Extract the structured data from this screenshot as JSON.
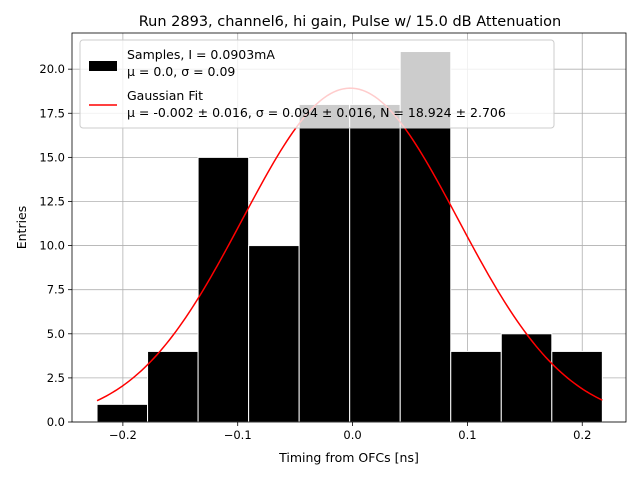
{
  "chart_data": {
    "type": "bar",
    "title": "Run 2893, channel6, hi gain, Pulse w/ 15.0 dB Attenuation",
    "xlabel": "Timing from OFCs [ns]",
    "ylabel": "Entries",
    "xlim": [
      -0.2443,
      0.2381
    ],
    "ylim": [
      0,
      22.05
    ],
    "grid": true,
    "x_ticks": [
      -0.2,
      -0.1,
      0.0,
      0.1,
      0.2
    ],
    "x_tick_labels": [
      "−0.2",
      "−0.1",
      "0.0",
      "0.1",
      "0.2"
    ],
    "y_ticks": [
      0.0,
      2.5,
      5.0,
      7.5,
      10.0,
      12.5,
      15.0,
      17.5,
      20.0
    ],
    "y_tick_labels": [
      "0.0",
      "2.5",
      "5.0",
      "7.5",
      "10.0",
      "12.5",
      "15.0",
      "17.5",
      "20.0"
    ],
    "bin_edges": [
      -0.2225,
      -0.1785,
      -0.1345,
      -0.0905,
      -0.0465,
      -0.0025,
      0.0415,
      0.0855,
      0.1295,
      0.1735,
      0.2175
    ],
    "values": [
      1,
      4,
      15,
      10,
      18,
      18,
      21,
      4,
      5,
      4
    ],
    "fit": {
      "mu": -0.002,
      "sigma": 0.094,
      "N": 18.924,
      "x_range": [
        -0.2225,
        0.2175
      ]
    },
    "legend": {
      "position": "upper-left",
      "entries": [
        {
          "name": "samples",
          "kind": "patch",
          "color": "#000000",
          "line1": "Samples, I = 0.0903mA",
          "line2": "μ = 0.0, σ = 0.09"
        },
        {
          "name": "gaussian-fit",
          "kind": "line",
          "color": "#ff0000",
          "line1": "Gaussian Fit",
          "line2": "μ = -0.002 ± 0.016, σ = 0.094 ± 0.016, N = 18.924 ± 2.706"
        }
      ]
    },
    "colors": {
      "bars": "#000000",
      "bar_edge": "#ffffff",
      "fit": "#ff0000",
      "grid": "#b0b0b0"
    }
  }
}
